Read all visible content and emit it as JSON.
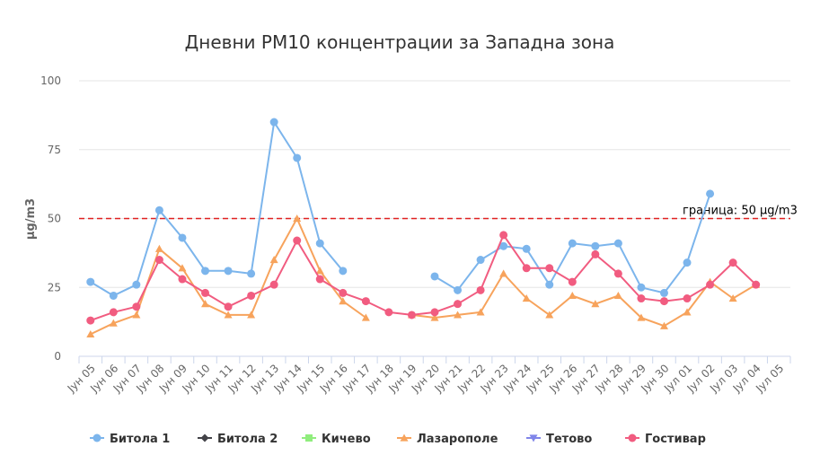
{
  "chart_data": {
    "type": "line",
    "title": "Дневни PM10 концентрации за Западна зона",
    "xlabel": "",
    "ylabel": "µg/m3",
    "ylim": [
      0,
      100
    ],
    "yticks": [
      0,
      25,
      50,
      75,
      100
    ],
    "grid": true,
    "legend_position": "bottom",
    "categories": [
      "Јун 05",
      "Јун 06",
      "Јун 07",
      "Јун 08",
      "Јун 09",
      "Јун 10",
      "Јун 11",
      "Јун 12",
      "Јун 13",
      "Јун 14",
      "Јун 15",
      "Јун 16",
      "Јун 17",
      "Јун 18",
      "Јун 19",
      "Јун 20",
      "Јун 21",
      "Јун 22",
      "Јун 23",
      "Јун 24",
      "Јун 25",
      "Јун 26",
      "Јун 27",
      "Јун 28",
      "Јун 29",
      "Јун 30",
      "Јул 01",
      "Јул 02",
      "Јул 03",
      "Јул 04",
      "Јул 05"
    ],
    "threshold": {
      "value": 50,
      "label": "граница: 50 µg/m3",
      "color": "#e02020"
    },
    "series": [
      {
        "name": "Битола 1",
        "color": "#7cb5ec",
        "marker": "circle",
        "values": [
          27,
          22,
          26,
          53,
          43,
          31,
          31,
          30,
          85,
          72,
          41,
          31,
          null,
          null,
          null,
          29,
          24,
          35,
          40,
          39,
          26,
          41,
          40,
          41,
          25,
          23,
          34,
          59,
          null,
          null,
          null
        ]
      },
      {
        "name": "Битола 2",
        "color": "#434348",
        "marker": "diamond",
        "values": [
          null,
          null,
          null,
          null,
          null,
          null,
          null,
          null,
          null,
          null,
          null,
          null,
          null,
          null,
          null,
          null,
          null,
          null,
          null,
          null,
          null,
          null,
          null,
          null,
          null,
          null,
          null,
          null,
          null,
          null,
          null
        ]
      },
      {
        "name": "Кичево",
        "color": "#90ed7d",
        "marker": "square",
        "values": [
          null,
          null,
          null,
          null,
          null,
          null,
          null,
          null,
          null,
          null,
          null,
          null,
          null,
          null,
          null,
          null,
          null,
          null,
          null,
          null,
          null,
          null,
          null,
          null,
          null,
          null,
          null,
          null,
          null,
          null,
          null
        ]
      },
      {
        "name": "Лазарополе",
        "color": "#f7a35c",
        "marker": "triangle",
        "values": [
          8,
          12,
          15,
          39,
          32,
          19,
          15,
          15,
          35,
          50,
          31,
          20,
          14,
          null,
          15,
          14,
          15,
          16,
          30,
          21,
          15,
          22,
          19,
          22,
          14,
          11,
          16,
          27,
          21,
          26,
          null
        ]
      },
      {
        "name": "Тетово",
        "color": "#8085e9",
        "marker": "triangle-down",
        "values": [
          null,
          null,
          null,
          null,
          null,
          null,
          null,
          null,
          null,
          null,
          null,
          null,
          null,
          null,
          null,
          null,
          null,
          null,
          null,
          null,
          null,
          null,
          null,
          null,
          null,
          null,
          null,
          null,
          null,
          null,
          null
        ]
      },
      {
        "name": "Гостивар",
        "color": "#f15c80",
        "marker": "circle",
        "values": [
          13,
          16,
          18,
          35,
          28,
          23,
          18,
          22,
          26,
          42,
          28,
          23,
          20,
          16,
          15,
          16,
          19,
          24,
          44,
          32,
          32,
          27,
          37,
          30,
          21,
          20,
          21,
          26,
          34,
          26,
          null
        ]
      }
    ]
  }
}
